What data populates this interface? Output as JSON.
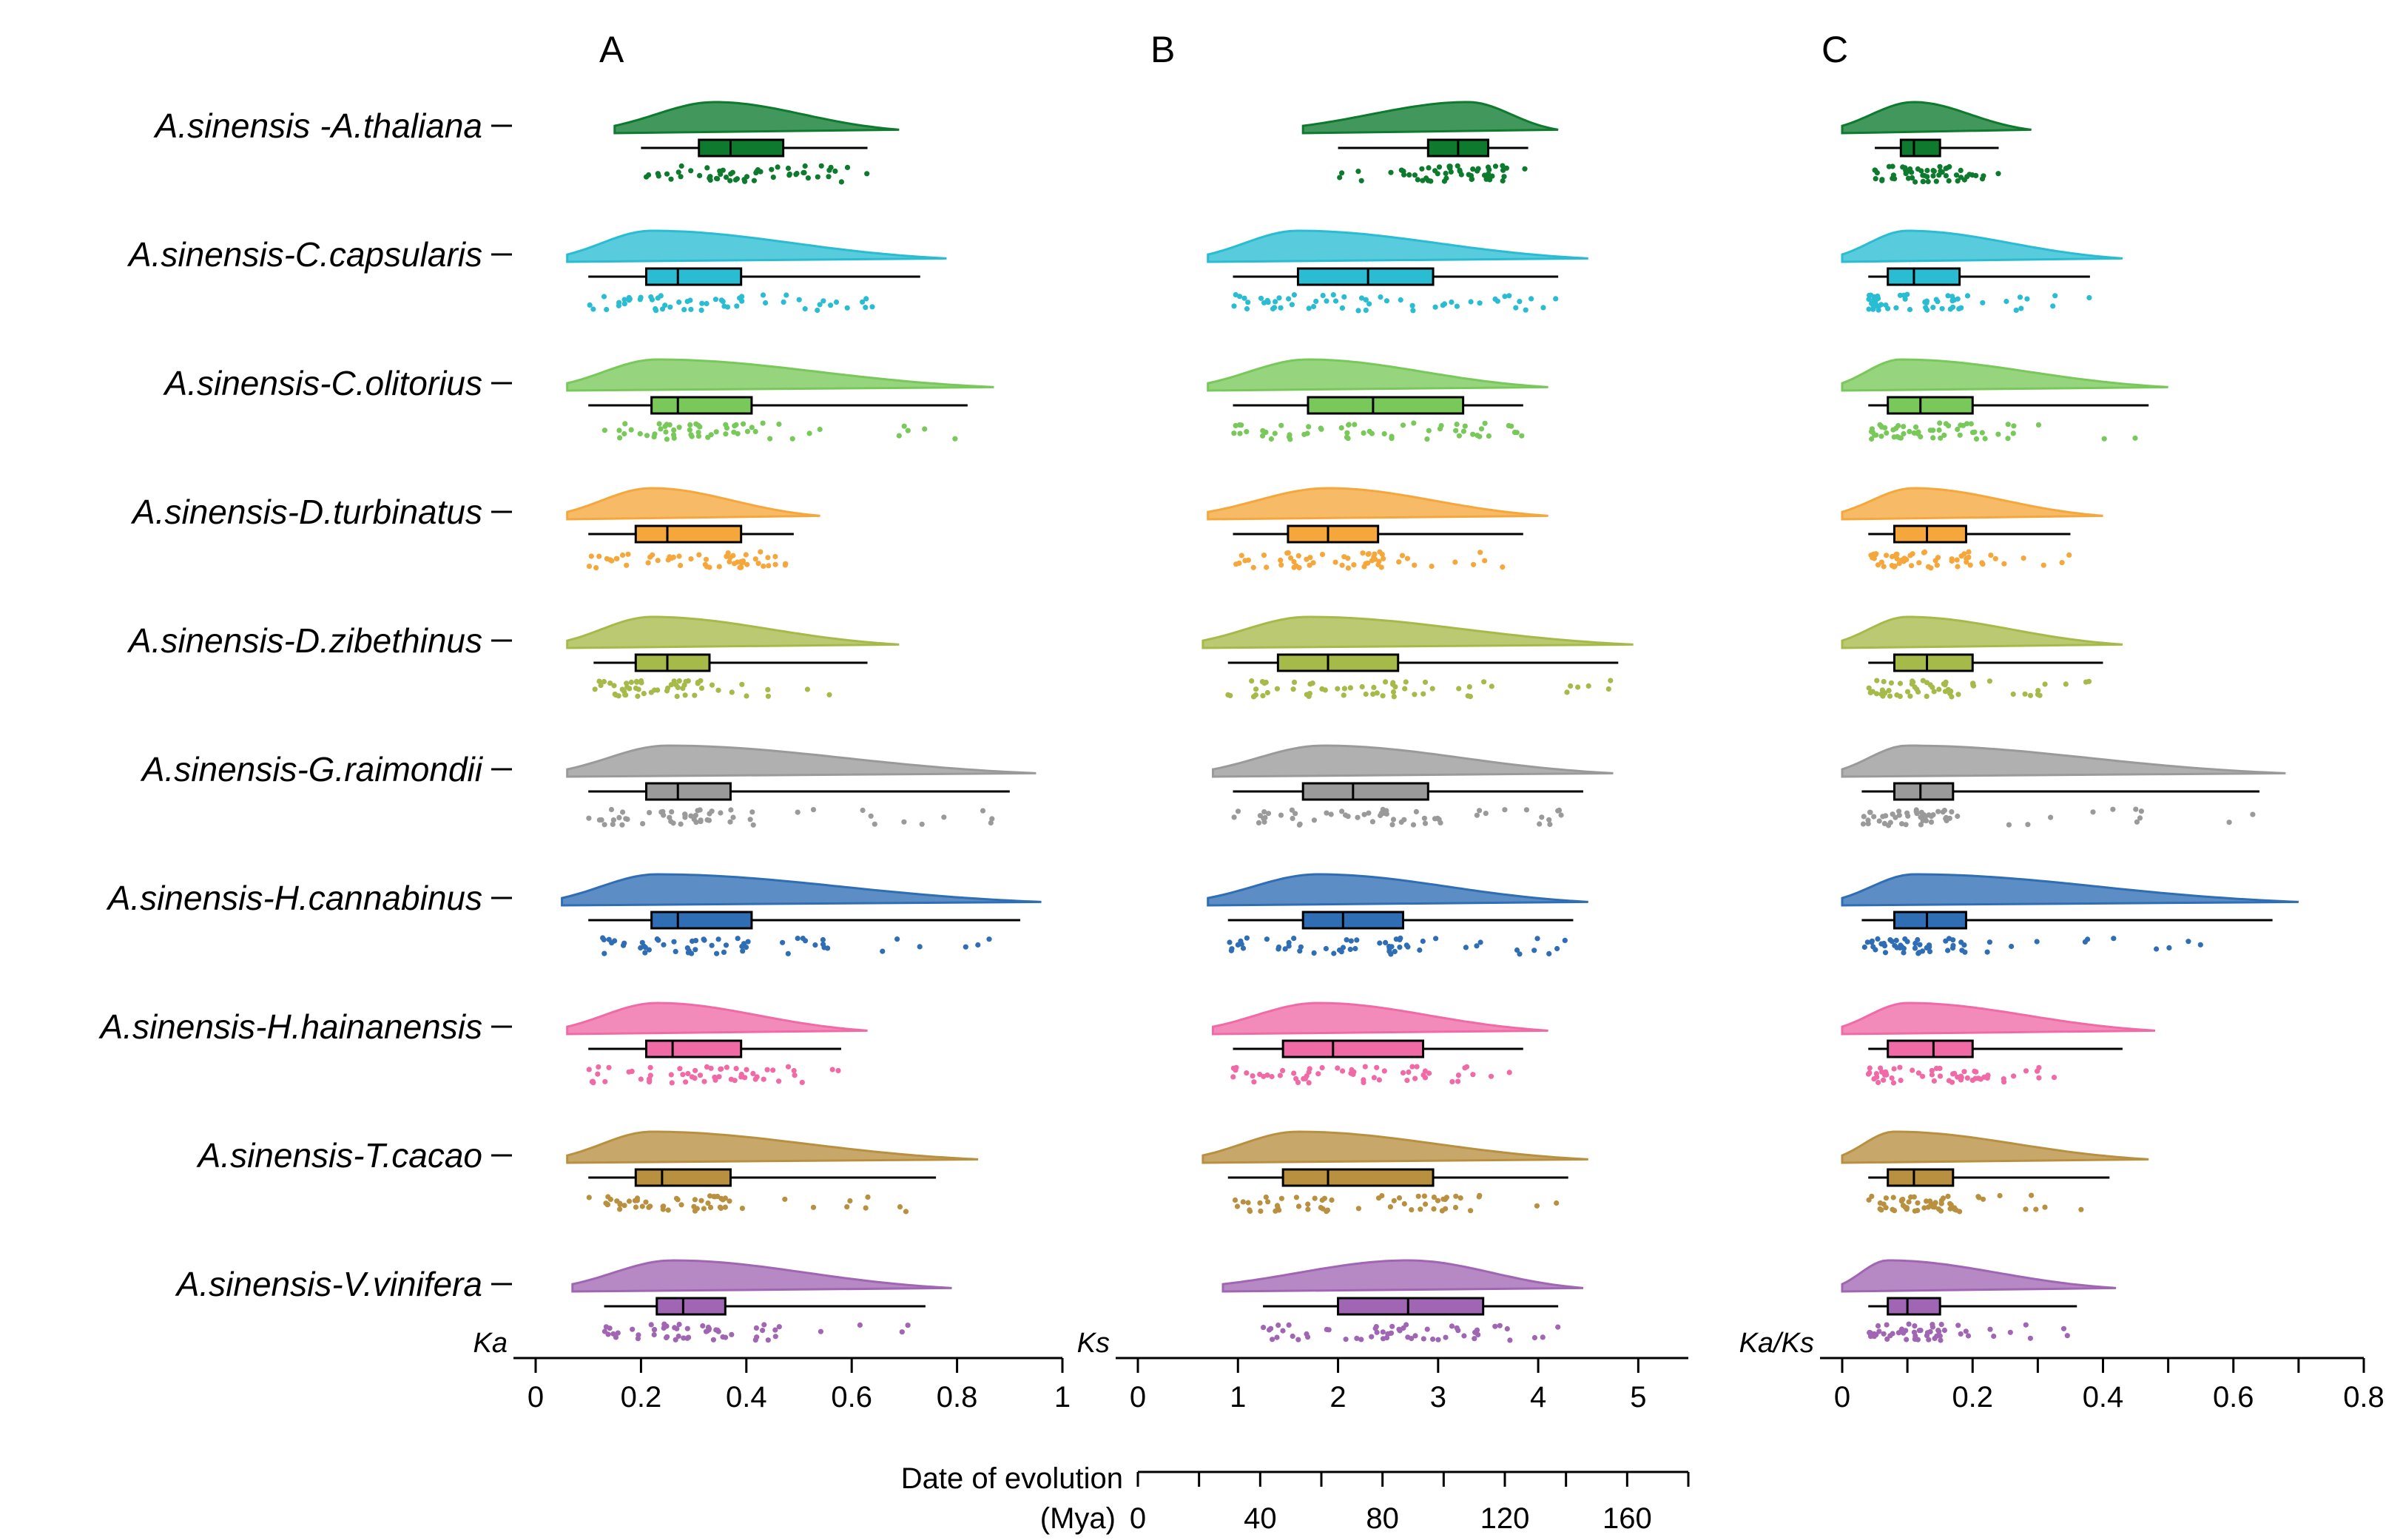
{
  "chart_data": {
    "type": "raincloud",
    "rows": [
      {
        "label": "A.sinensis -A.thaliana",
        "color": "#0d7a2e"
      },
      {
        "label": "A.sinensis-C.capsularis",
        "color": "#29bcd3"
      },
      {
        "label": "A.sinensis-C.olitorius",
        "color": "#78c85a"
      },
      {
        "label": "A.sinensis-D.turbinatus",
        "color": "#f5a73c"
      },
      {
        "label": "A.sinensis-D.zibethinus",
        "color": "#a6ba4a"
      },
      {
        "label": "A.sinensis-G.raimondii",
        "color": "#9a9a9a"
      },
      {
        "label": "A.sinensis-H.cannabinus",
        "color": "#2f6db5"
      },
      {
        "label": "A.sinensis-H.hainanensis",
        "color": "#f06aa6"
      },
      {
        "label": "A.sinensis-T.cacao",
        "color": "#b89040"
      },
      {
        "label": "A.sinensis-V.vinifera",
        "color": "#a166b3"
      }
    ],
    "panels": [
      {
        "letter": "A",
        "metric": "Ka",
        "xlim": [
          0,
          1
        ],
        "ticks": [
          0,
          0.2,
          0.4,
          0.6,
          0.8,
          1
        ],
        "tick_labels": [
          "0",
          "0.2",
          "0.4",
          "0.6",
          "0.8",
          "1"
        ],
        "stats": [
          {
            "min": 0.2,
            "q1": 0.31,
            "median": 0.37,
            "q3": 0.47,
            "max": 0.63,
            "dmin": 0.15,
            "dmax": 0.69,
            "mode": 0.34
          },
          {
            "min": 0.1,
            "q1": 0.21,
            "median": 0.27,
            "q3": 0.39,
            "max": 0.73,
            "dmin": 0.06,
            "dmax": 0.78,
            "mode": 0.22
          },
          {
            "min": 0.1,
            "q1": 0.22,
            "median": 0.27,
            "q3": 0.41,
            "max": 0.82,
            "dmin": 0.06,
            "dmax": 0.87,
            "mode": 0.23
          },
          {
            "min": 0.1,
            "q1": 0.19,
            "median": 0.25,
            "q3": 0.39,
            "max": 0.49,
            "dmin": 0.06,
            "dmax": 0.54,
            "mode": 0.22
          },
          {
            "min": 0.11,
            "q1": 0.19,
            "median": 0.25,
            "q3": 0.33,
            "max": 0.63,
            "dmin": 0.06,
            "dmax": 0.69,
            "mode": 0.22
          },
          {
            "min": 0.1,
            "q1": 0.21,
            "median": 0.27,
            "q3": 0.37,
            "max": 0.9,
            "dmin": 0.06,
            "dmax": 0.95,
            "mode": 0.25
          },
          {
            "min": 0.1,
            "q1": 0.22,
            "median": 0.27,
            "q3": 0.41,
            "max": 0.92,
            "dmin": 0.05,
            "dmax": 0.96,
            "mode": 0.23
          },
          {
            "min": 0.1,
            "q1": 0.21,
            "median": 0.26,
            "q3": 0.39,
            "max": 0.58,
            "dmin": 0.06,
            "dmax": 0.63,
            "mode": 0.23
          },
          {
            "min": 0.1,
            "q1": 0.19,
            "median": 0.24,
            "q3": 0.37,
            "max": 0.76,
            "dmin": 0.06,
            "dmax": 0.84,
            "mode": 0.22
          },
          {
            "min": 0.13,
            "q1": 0.23,
            "median": 0.28,
            "q3": 0.36,
            "max": 0.74,
            "dmin": 0.07,
            "dmax": 0.79,
            "mode": 0.26
          }
        ]
      },
      {
        "letter": "B",
        "metric": "Ks",
        "xlim": [
          0,
          5.5
        ],
        "ticks": [
          0,
          1,
          2,
          3,
          4,
          5
        ],
        "tick_labels": [
          "0",
          "1",
          "2",
          "3",
          "4",
          "5"
        ],
        "stats": [
          {
            "min": 2.0,
            "q1": 2.9,
            "median": 3.2,
            "q3": 3.5,
            "max": 3.9,
            "dmin": 1.65,
            "dmax": 4.2,
            "mode": 3.3
          },
          {
            "min": 0.95,
            "q1": 1.6,
            "median": 2.3,
            "q3": 2.95,
            "max": 4.2,
            "dmin": 0.7,
            "dmax": 4.5,
            "mode": 1.6
          },
          {
            "min": 0.95,
            "q1": 1.7,
            "median": 2.35,
            "q3": 3.25,
            "max": 3.85,
            "dmin": 0.7,
            "dmax": 4.1,
            "mode": 1.7
          },
          {
            "min": 0.95,
            "q1": 1.5,
            "median": 1.9,
            "q3": 2.4,
            "max": 3.85,
            "dmin": 0.7,
            "dmax": 4.1,
            "mode": 1.9
          },
          {
            "min": 0.9,
            "q1": 1.4,
            "median": 1.9,
            "q3": 2.6,
            "max": 4.8,
            "dmin": 0.65,
            "dmax": 4.95,
            "mode": 1.7
          },
          {
            "min": 0.95,
            "q1": 1.65,
            "median": 2.15,
            "q3": 2.9,
            "max": 4.45,
            "dmin": 0.75,
            "dmax": 4.75,
            "mode": 1.85
          },
          {
            "min": 0.9,
            "q1": 1.65,
            "median": 2.05,
            "q3": 2.65,
            "max": 4.35,
            "dmin": 0.7,
            "dmax": 4.5,
            "mode": 1.8
          },
          {
            "min": 0.95,
            "q1": 1.45,
            "median": 1.95,
            "q3": 2.85,
            "max": 3.85,
            "dmin": 0.75,
            "dmax": 4.1,
            "mode": 1.8
          },
          {
            "min": 0.9,
            "q1": 1.45,
            "median": 1.9,
            "q3": 2.95,
            "max": 4.3,
            "dmin": 0.65,
            "dmax": 4.5,
            "mode": 1.6
          },
          {
            "min": 1.25,
            "q1": 2.0,
            "median": 2.7,
            "q3": 3.45,
            "max": 4.2,
            "dmin": 0.85,
            "dmax": 4.45,
            "mode": 2.7
          }
        ]
      },
      {
        "letter": "C",
        "metric": "Ka/Ks",
        "xlim": [
          0,
          0.8
        ],
        "ticks": [
          0,
          0.1,
          0.2,
          0.3,
          0.4,
          0.5,
          0.6,
          0.7,
          0.8
        ],
        "tick_labels": [
          "0",
          "",
          "0.2",
          "",
          "0.4",
          "",
          "0.6",
          "",
          "0.8"
        ],
        "stats": [
          {
            "min": 0.05,
            "q1": 0.09,
            "median": 0.11,
            "q3": 0.15,
            "max": 0.24,
            "dmin": 0.0,
            "dmax": 0.29,
            "mode": 0.11
          },
          {
            "min": 0.04,
            "q1": 0.07,
            "median": 0.11,
            "q3": 0.18,
            "max": 0.38,
            "dmin": 0.0,
            "dmax": 0.43,
            "mode": 0.1
          },
          {
            "min": 0.04,
            "q1": 0.07,
            "median": 0.12,
            "q3": 0.2,
            "max": 0.47,
            "dmin": 0.0,
            "dmax": 0.5,
            "mode": 0.09
          },
          {
            "min": 0.04,
            "q1": 0.08,
            "median": 0.13,
            "q3": 0.19,
            "max": 0.35,
            "dmin": 0.0,
            "dmax": 0.4,
            "mode": 0.11
          },
          {
            "min": 0.04,
            "q1": 0.08,
            "median": 0.13,
            "q3": 0.2,
            "max": 0.4,
            "dmin": 0.0,
            "dmax": 0.43,
            "mode": 0.1
          },
          {
            "min": 0.03,
            "q1": 0.08,
            "median": 0.12,
            "q3": 0.17,
            "max": 0.64,
            "dmin": 0.0,
            "dmax": 0.68,
            "mode": 0.1
          },
          {
            "min": 0.03,
            "q1": 0.08,
            "median": 0.13,
            "q3": 0.19,
            "max": 0.66,
            "dmin": 0.0,
            "dmax": 0.7,
            "mode": 0.11
          },
          {
            "min": 0.04,
            "q1": 0.07,
            "median": 0.14,
            "q3": 0.2,
            "max": 0.43,
            "dmin": 0.0,
            "dmax": 0.48,
            "mode": 0.1
          },
          {
            "min": 0.04,
            "q1": 0.07,
            "median": 0.11,
            "q3": 0.17,
            "max": 0.41,
            "dmin": 0.0,
            "dmax": 0.47,
            "mode": 0.08
          },
          {
            "min": 0.04,
            "q1": 0.07,
            "median": 0.1,
            "q3": 0.15,
            "max": 0.36,
            "dmin": 0.0,
            "dmax": 0.42,
            "mode": 0.07
          }
        ]
      }
    ],
    "date_axis": {
      "label_line1": "Date of evolution",
      "label_line2": "(Mya)",
      "xlim": [
        0,
        180
      ],
      "ticks": [
        0,
        20,
        40,
        60,
        80,
        100,
        120,
        140,
        160,
        180
      ],
      "tick_labels": [
        "0",
        "",
        "40",
        "",
        "80",
        "",
        "120",
        "",
        "160",
        ""
      ]
    }
  }
}
